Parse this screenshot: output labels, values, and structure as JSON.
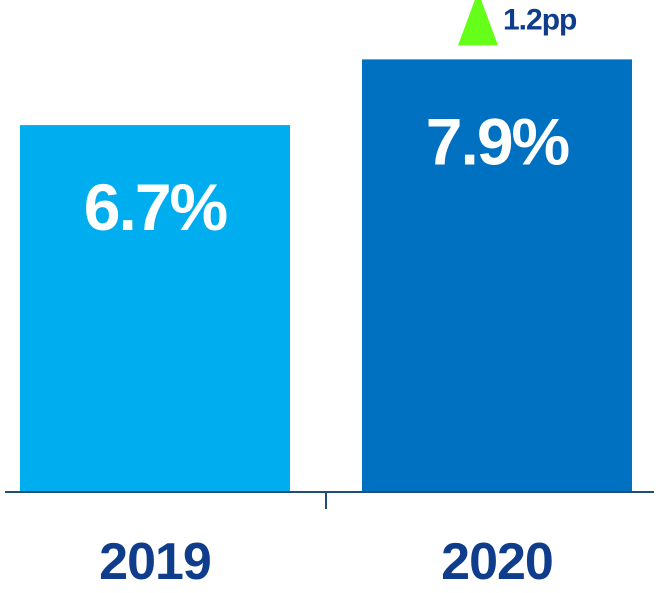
{
  "chart_data": {
    "type": "bar",
    "categories": [
      "2019",
      "2020"
    ],
    "values": [
      6.7,
      7.9
    ],
    "value_labels": [
      "6.7%",
      "7.9%"
    ],
    "colors": [
      "#00aeef",
      "#0070c0"
    ],
    "ylim": [
      0,
      8.4
    ],
    "grid": false,
    "legend": "none",
    "annotation": {
      "text": "1.2pp",
      "icon": "up-triangle-icon",
      "icon_color": "#66ff1a",
      "target_category": "2020"
    },
    "axis_color": "#1f4e79",
    "tick_label_color": "#0f3d8c"
  }
}
